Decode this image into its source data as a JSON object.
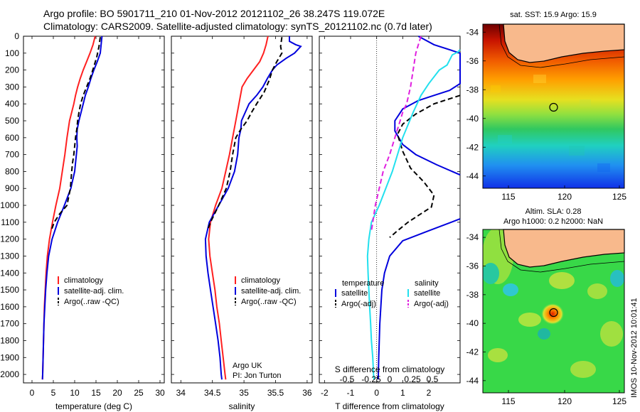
{
  "header": {
    "line1": "Argo profile: BO 5901711_210 01-Nov-2012 20121102_26 38.247S 119.072E",
    "line2": "Climatology: CARS2009. Satellite-adjusted climatology: synTS_20121102.nc (0.7d later)"
  },
  "side_stamp": "IMOS 10-Nov-2012 10:01:41",
  "colors": {
    "climatology": "#ff2020",
    "satellite": "#0000dd",
    "argo": "#000000",
    "cyan": "#22e0ee",
    "magenta": "#e020e0",
    "land": "#f8b98c"
  },
  "chart_data": [
    {
      "type": "line",
      "xlabel": "temperature (deg C)",
      "ylabel": "",
      "xlim": [
        -2,
        31
      ],
      "ylim": [
        2050,
        0
      ],
      "xticks": [
        0,
        5,
        10,
        15,
        20,
        25,
        30
      ],
      "yticks": [
        0,
        100,
        200,
        300,
        400,
        500,
        600,
        700,
        800,
        900,
        1000,
        1100,
        1200,
        1300,
        1400,
        1500,
        1600,
        1700,
        1800,
        1900,
        2000
      ],
      "legend": [
        "climatology",
        "satellite-adj. clim.",
        "Argo(..raw -QC)"
      ],
      "series": [
        {
          "name": "climatology",
          "color": "#ff2020",
          "style": "solid",
          "points": [
            [
              14.8,
              0
            ],
            [
              14.3,
              50
            ],
            [
              13.6,
              100
            ],
            [
              12.8,
              150
            ],
            [
              12,
              200
            ],
            [
              11.3,
              250
            ],
            [
              10.7,
              300
            ],
            [
              10.2,
              350
            ],
            [
              9.8,
              400
            ],
            [
              9.3,
              450
            ],
            [
              8.8,
              500
            ],
            [
              8.2,
              600
            ],
            [
              7.7,
              700
            ],
            [
              7.1,
              800
            ],
            [
              6.5,
              900
            ],
            [
              5.6,
              1000
            ],
            [
              4.8,
              1100
            ],
            [
              4.1,
              1200
            ],
            [
              3.6,
              1300
            ],
            [
              3.3,
              1400
            ],
            [
              3.1,
              1500
            ],
            [
              2.9,
              1600
            ],
            [
              2.8,
              1700
            ],
            [
              2.7,
              1800
            ],
            [
              2.6,
              1900
            ],
            [
              2.5,
              2000
            ],
            [
              2.45,
              2030
            ]
          ]
        },
        {
          "name": "satellite-adj. clim.",
          "color": "#0000dd",
          "style": "solid",
          "points": [
            [
              16.4,
              0
            ],
            [
              16.2,
              50
            ],
            [
              16,
              100
            ],
            [
              15.3,
              150
            ],
            [
              14.5,
              200
            ],
            [
              13.8,
              250
            ],
            [
              13.2,
              300
            ],
            [
              12.5,
              350
            ],
            [
              12,
              400
            ],
            [
              11.5,
              450
            ],
            [
              11,
              500
            ],
            [
              10.6,
              550
            ],
            [
              10.5,
              600
            ],
            [
              10.6,
              650
            ],
            [
              10.4,
              700
            ],
            [
              10,
              800
            ],
            [
              9.1,
              900
            ],
            [
              7.6,
              1000
            ],
            [
              6,
              1100
            ],
            [
              4.7,
              1200
            ],
            [
              3.9,
              1300
            ],
            [
              3.5,
              1400
            ],
            [
              3.2,
              1500
            ],
            [
              3,
              1600
            ],
            [
              2.8,
              1700
            ],
            [
              2.7,
              1800
            ],
            [
              2.6,
              1900
            ],
            [
              2.5,
              2000
            ],
            [
              2.45,
              2030
            ]
          ]
        },
        {
          "name": "Argo(..raw -QC)",
          "color": "#000000",
          "style": "dashed",
          "points": [
            [
              16,
              5
            ],
            [
              15.7,
              60
            ],
            [
              15.2,
              120
            ],
            [
              14.5,
              180
            ],
            [
              13.6,
              250
            ],
            [
              12.8,
              300
            ],
            [
              12,
              350
            ],
            [
              11.4,
              400
            ],
            [
              11,
              450
            ],
            [
              10.7,
              500
            ],
            [
              10.5,
              550
            ],
            [
              10.2,
              600
            ],
            [
              9.8,
              700
            ],
            [
              9.5,
              750
            ],
            [
              9.3,
              800
            ],
            [
              9,
              900
            ],
            [
              8.2,
              1000
            ],
            [
              6.5,
              1050
            ],
            [
              5.2,
              1100
            ],
            [
              4.5,
              1150
            ]
          ]
        }
      ],
      "annotations": []
    },
    {
      "type": "line",
      "xlabel": "salinity",
      "ylabel": "",
      "xlim": [
        33.85,
        36.08
      ],
      "ylim": [
        2050,
        0
      ],
      "xticks": [
        34,
        34.5,
        35,
        35.5,
        36
      ],
      "legend": [
        "climatology",
        "satellite-adj. clim.",
        "Argo(..raw -QC)"
      ],
      "series": [
        {
          "name": "climatology",
          "color": "#ff2020",
          "style": "solid",
          "points": [
            [
              35.38,
              0
            ],
            [
              35.35,
              50
            ],
            [
              35.31,
              100
            ],
            [
              35.25,
              150
            ],
            [
              35.15,
              200
            ],
            [
              35.05,
              250
            ],
            [
              34.97,
              300
            ],
            [
              34.92,
              400
            ],
            [
              34.87,
              500
            ],
            [
              34.82,
              600
            ],
            [
              34.77,
              700
            ],
            [
              34.71,
              800
            ],
            [
              34.65,
              900
            ],
            [
              34.55,
              1000
            ],
            [
              34.47,
              1100
            ],
            [
              34.44,
              1200
            ],
            [
              34.46,
              1300
            ],
            [
              34.5,
              1400
            ],
            [
              34.54,
              1500
            ],
            [
              34.57,
              1600
            ],
            [
              34.61,
              1700
            ],
            [
              34.64,
              1800
            ],
            [
              34.67,
              1900
            ],
            [
              34.7,
              2000
            ],
            [
              34.71,
              2030
            ]
          ]
        },
        {
          "name": "satellite-adj. clim.",
          "color": "#0000dd",
          "style": "solid",
          "points": [
            [
              35.72,
              0
            ],
            [
              35.72,
              30
            ],
            [
              35.82,
              50
            ],
            [
              35.9,
              60
            ],
            [
              35.8,
              100
            ],
            [
              35.67,
              130
            ],
            [
              35.52,
              170
            ],
            [
              35.45,
              200
            ],
            [
              35.37,
              250
            ],
            [
              35.3,
              300
            ],
            [
              35.2,
              350
            ],
            [
              35.08,
              400
            ],
            [
              35.02,
              450
            ],
            [
              34.96,
              500
            ],
            [
              34.95,
              550
            ],
            [
              34.92,
              600
            ],
            [
              34.9,
              700
            ],
            [
              34.85,
              800
            ],
            [
              34.75,
              900
            ],
            [
              34.6,
              1000
            ],
            [
              34.45,
              1100
            ],
            [
              34.39,
              1200
            ],
            [
              34.4,
              1300
            ],
            [
              34.43,
              1400
            ],
            [
              34.47,
              1500
            ],
            [
              34.51,
              1600
            ],
            [
              34.55,
              1700
            ],
            [
              34.59,
              1800
            ],
            [
              34.62,
              1900
            ],
            [
              34.64,
              2000
            ],
            [
              34.65,
              2030
            ]
          ]
        },
        {
          "name": "Argo(..raw -QC)",
          "color": "#000000",
          "style": "dashed",
          "points": [
            [
              35.6,
              5
            ],
            [
              35.58,
              60
            ],
            [
              35.6,
              100
            ],
            [
              35.52,
              150
            ],
            [
              35.45,
              200
            ],
            [
              35.4,
              260
            ],
            [
              35.32,
              330
            ],
            [
              35.2,
              400
            ],
            [
              35.12,
              450
            ],
            [
              35.05,
              500
            ],
            [
              34.95,
              550
            ],
            [
              34.87,
              600
            ],
            [
              34.82,
              700
            ],
            [
              34.78,
              800
            ],
            [
              34.72,
              900
            ],
            [
              34.6,
              1000
            ],
            [
              34.47,
              1100
            ],
            [
              34.42,
              1150
            ]
          ]
        }
      ],
      "annotations": [
        "Argo UK",
        "PI: Jon Turton"
      ]
    },
    {
      "type": "line",
      "xlabel": "T difference from climatology",
      "x2label": "S difference from climatology",
      "ylabel": "",
      "xlim": [
        -2.2,
        3.2
      ],
      "ylim": [
        2050,
        0
      ],
      "xticks": [
        -2,
        -1,
        0,
        1,
        2
      ],
      "x2ticks": [
        -0.5,
        -0.25,
        0,
        0.25,
        0.5
      ],
      "legend_title_left": "temperature",
      "legend_title_right": "salinity",
      "legend": [
        "satellite",
        "Argo(-adj)",
        "satellite",
        "Argo(-adj)"
      ],
      "series": [
        {
          "name": "satellite",
          "color": "#0000dd",
          "style": "solid",
          "points": [
            [
              1.6,
              0
            ],
            [
              2.2,
              50
            ],
            [
              3.2,
              100
            ],
            [
              3.2,
              280
            ],
            [
              2.8,
              320
            ],
            [
              2.2,
              350
            ],
            [
              1.6,
              380
            ],
            [
              1,
              430
            ],
            [
              0.7,
              500
            ],
            [
              0.7,
              560
            ],
            [
              1,
              640
            ],
            [
              1.5,
              700
            ],
            [
              2.3,
              760
            ],
            [
              3.2,
              820
            ]
          ]
        },
        {
          "name": "satellite",
          "color": "#0000dd",
          "style": "solid",
          "points": [
            [
              3.2,
              1080
            ],
            [
              2,
              1150
            ],
            [
              1,
              1210
            ],
            [
              0.5,
              1300
            ],
            [
              0.3,
              1400
            ],
            [
              0.2,
              1500
            ],
            [
              0.12,
              1700
            ],
            [
              0.08,
              1900
            ],
            [
              0.06,
              2030
            ]
          ]
        },
        {
          "name": "Argo(-adj)",
          "color": "#000000",
          "style": "dashed",
          "points": [
            [
              3.2,
              350
            ],
            [
              2.8,
              370
            ],
            [
              2.2,
              400
            ],
            [
              1.5,
              460
            ],
            [
              1,
              520
            ],
            [
              0.8,
              580
            ],
            [
              1,
              680
            ],
            [
              1.3,
              780
            ],
            [
              1.8,
              860
            ],
            [
              2.2,
              940
            ],
            [
              2.1,
              1010
            ],
            [
              1.6,
              1060
            ],
            [
              1.2,
              1100
            ],
            [
              0.8,
              1150
            ],
            [
              0.5,
              1190
            ]
          ]
        },
        {
          "name": "satellite",
          "color": "#22e0ee",
          "style": "solid",
          "points": [
            [
              3.2,
              80
            ],
            [
              3.1,
              95
            ],
            [
              2.9,
              110
            ],
            [
              2.7,
              170
            ],
            [
              2.4,
              200
            ],
            [
              2,
              280
            ],
            [
              1.7,
              350
            ],
            [
              1.4,
              450
            ],
            [
              1,
              600
            ],
            [
              0.6,
              800
            ],
            [
              0.1,
              1000
            ],
            [
              -0.2,
              1100
            ],
            [
              -0.3,
              1200
            ],
            [
              -0.35,
              1300
            ],
            [
              -0.33,
              1400
            ],
            [
              -0.3,
              1500
            ],
            [
              -0.27,
              1600
            ],
            [
              -0.23,
              1700
            ],
            [
              -0.2,
              1800
            ],
            [
              -0.15,
              1900
            ],
            [
              -0.12,
              2000
            ],
            [
              -0.1,
              2030
            ]
          ]
        },
        {
          "name": "Argo(-adj)",
          "color": "#e020e0",
          "style": "dashed",
          "points": [
            [
              1.7,
              0
            ],
            [
              1.6,
              50
            ],
            [
              1.5,
              100
            ],
            [
              1.4,
              200
            ],
            [
              1.3,
              300
            ],
            [
              1.15,
              400
            ],
            [
              1,
              450
            ],
            [
              0.9,
              500
            ],
            [
              0.7,
              600
            ],
            [
              0.5,
              700
            ],
            [
              0.25,
              800
            ],
            [
              0.1,
              900
            ],
            [
              -0.05,
              1000
            ],
            [
              -0.15,
              1100
            ],
            [
              -0.2,
              1150
            ]
          ]
        }
      ],
      "annotations": []
    }
  ],
  "maps": {
    "top": {
      "title": "sat. SST: 15.9  Argo: 15.9",
      "xticks": [
        "115",
        "120",
        "125"
      ],
      "yticks": [
        "-34",
        "-36",
        "-38",
        "-40",
        "-42",
        "-44"
      ]
    },
    "bottom": {
      "title1": "Altim. SLA: 0.28",
      "title2": "Argo h1000: 0.2  h2000: NaN",
      "xticks": [
        "115",
        "120",
        "125"
      ],
      "yticks": [
        "-34",
        "-36",
        "-38",
        "-40",
        "-42",
        "-44"
      ]
    }
  }
}
